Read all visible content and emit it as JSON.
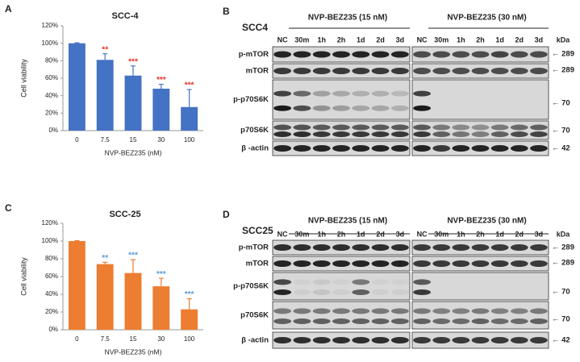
{
  "chart_data": [
    {
      "type": "bar",
      "panel_label": "A",
      "title": "SCC-4",
      "x_label": "NVP-BEZ235 (nM)",
      "y_label": "Cell viability",
      "categories": [
        "0",
        "7.5",
        "15",
        "30",
        "100"
      ],
      "values": [
        100,
        81,
        63,
        48,
        27
      ],
      "errors": [
        0.5,
        7,
        11,
        5,
        20
      ],
      "color": "#4472c4",
      "annotation_color": "#e8302a",
      "annotations": [
        {
          "category": "7.5",
          "text": "**"
        },
        {
          "category": "15",
          "text": "***"
        },
        {
          "category": "30",
          "text": "***"
        },
        {
          "category": "100",
          "text": "***"
        }
      ],
      "ylim": [
        0,
        120
      ],
      "yticks": [
        {
          "value": 0,
          "label": "0%"
        },
        {
          "value": 20,
          "label": "20%"
        },
        {
          "value": 40,
          "label": "40%"
        },
        {
          "value": 60,
          "label": "60%"
        },
        {
          "value": 80,
          "label": "80%"
        },
        {
          "value": 100,
          "label": "100%"
        },
        {
          "value": 120,
          "label": "120%"
        }
      ]
    },
    {
      "type": "bar",
      "panel_label": "C",
      "title": "SCC-25",
      "x_label": "NVP-BEZ235 (nM)",
      "y_label": "Cell viability",
      "categories": [
        "0",
        "7.5",
        "15",
        "30",
        "100"
      ],
      "values": [
        100,
        74,
        64,
        49,
        23
      ],
      "errors": [
        0.5,
        2,
        15,
        9,
        12
      ],
      "color": "#ed7d31",
      "annotation_color": "#5b9bd5",
      "annotations": [
        {
          "category": "7.5",
          "text": "**"
        },
        {
          "category": "15",
          "text": "***"
        },
        {
          "category": "30",
          "text": "***"
        },
        {
          "category": "100",
          "text": "***"
        }
      ],
      "ylim": [
        0,
        120
      ],
      "yticks": [
        {
          "value": 0,
          "label": "0%"
        },
        {
          "value": 20,
          "label": "20%"
        },
        {
          "value": 40,
          "label": "40%"
        },
        {
          "value": 60,
          "label": "60%"
        },
        {
          "value": 80,
          "label": "80%"
        },
        {
          "value": 100,
          "label": "100%"
        },
        {
          "value": 120,
          "label": "120%"
        }
      ]
    }
  ],
  "blots": [
    {
      "panel_label": "B",
      "cell_line": "SCC4",
      "kda_header": "kDa",
      "groups": [
        {
          "label": "NVP-BEZ235 (15 nM)",
          "lanes": [
            "NC",
            "30m",
            "1h",
            "2h",
            "1d",
            "2d",
            "3d"
          ]
        },
        {
          "label": "NVP-BEZ235 (30 nM)",
          "lanes": [
            "NC",
            "30m",
            "1h",
            "2h",
            "1d",
            "2d",
            "3d"
          ]
        }
      ],
      "rows": [
        {
          "label": "p-mTOR",
          "marker": "← 289"
        },
        {
          "label": "mTOR",
          "marker": "← 289"
        },
        {
          "label": "p-p70S6K",
          "marker": "← 70"
        },
        {
          "label": "p70S6K",
          "marker": "← 70"
        },
        {
          "label": "β -actin",
          "marker": "← 42"
        }
      ]
    },
    {
      "panel_label": "D",
      "cell_line": "SCC25",
      "kda_header": "kDa",
      "groups": [
        {
          "label": "NVP-BEZ235 (15 nM)",
          "lanes": [
            "NC",
            "30m",
            "1h",
            "2h",
            "1d",
            "2d",
            "3d"
          ]
        },
        {
          "label": "NVP-BEZ235 (30 nM)",
          "lanes": [
            "NC",
            "30m",
            "1h",
            "2h",
            "1d",
            "2d",
            "3d"
          ]
        }
      ],
      "rows": [
        {
          "label": "p-mTOR",
          "marker": "← 289"
        },
        {
          "label": "mTOR",
          "marker": "← 289"
        },
        {
          "label": "p-p70S6K",
          "marker": "← 70"
        },
        {
          "label": "p70S6K",
          "marker": "← 70"
        },
        {
          "label": "β -actin",
          "marker": "← 42"
        }
      ]
    }
  ]
}
